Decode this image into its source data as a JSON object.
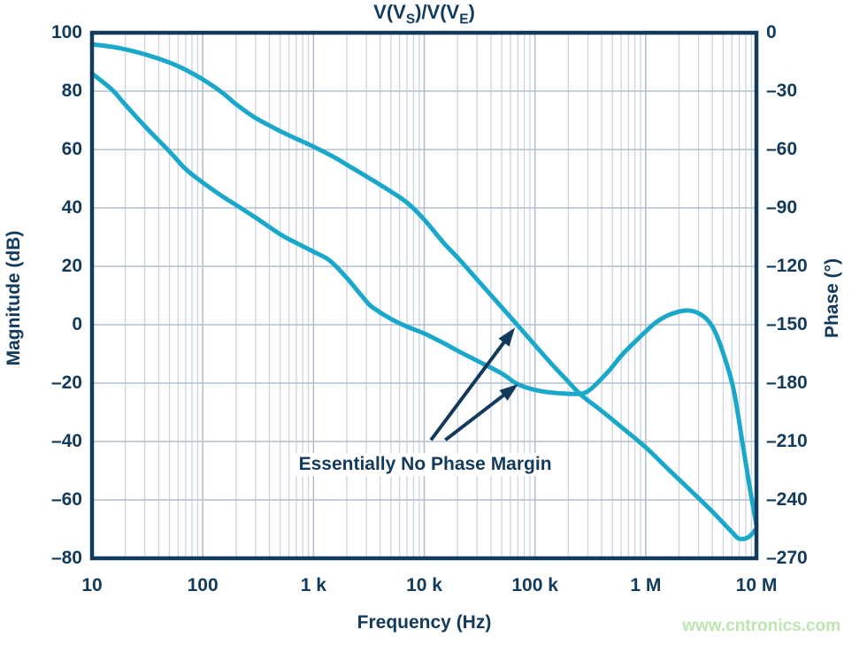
{
  "figure": {
    "title_plain": "V(V_S)/V(V_E)",
    "title_segments": [
      {
        "text": "V(V"
      },
      {
        "text": "S",
        "subscript": true
      },
      {
        "text": ")/V(V"
      },
      {
        "text": "E",
        "subscript": true
      },
      {
        "text": ")"
      }
    ]
  },
  "watermark": {
    "text": "www.cntronics.com",
    "color": "#bce5b0"
  },
  "colors": {
    "curve": "#1aa8ca",
    "frame": "#123a5c",
    "text": "#123a5c",
    "grid_minor": "#ccd4e0",
    "grid_major": "#b4bfd1",
    "background": "#ffffff"
  },
  "chart_data": {
    "type": "line",
    "title": "V(V_S)/V(V_E)",
    "grid": true,
    "legend": "none",
    "x_axis": {
      "label": "Frequency (Hz)",
      "scale": "log",
      "min": 10,
      "max": 10000000,
      "ticks": [
        {
          "label": "10",
          "hz": 10
        },
        {
          "label": "100",
          "hz": 100
        },
        {
          "label": "1 k",
          "hz": 1000
        },
        {
          "label": "10 k",
          "hz": 10000
        },
        {
          "label": "100 k",
          "hz": 100000
        },
        {
          "label": "1 M",
          "hz": 1000000
        },
        {
          "label": "10 M",
          "hz": 10000000
        }
      ]
    },
    "y_axis_left": {
      "label": "Magnitude (dB)",
      "min": -80,
      "max": 100,
      "step": 20,
      "ticks": [
        {
          "label": "100",
          "value": 100
        },
        {
          "label": "80",
          "value": 80
        },
        {
          "label": "60",
          "value": 60
        },
        {
          "label": "40",
          "value": 40
        },
        {
          "label": "20",
          "value": 20
        },
        {
          "label": "0",
          "value": 0
        },
        {
          "label": "–20",
          "value": -20
        },
        {
          "label": "–40",
          "value": -40
        },
        {
          "label": "–60",
          "value": -60
        },
        {
          "label": "–80",
          "value": -80
        }
      ]
    },
    "y_axis_right": {
      "label": "Phase (°)",
      "min": -270,
      "max": 0,
      "step": 30,
      "ticks": [
        {
          "label": "0",
          "value": 0
        },
        {
          "label": "–30",
          "value": -30
        },
        {
          "label": "–60",
          "value": -60
        },
        {
          "label": "–90",
          "value": -90
        },
        {
          "label": "–120",
          "value": -120
        },
        {
          "label": "–150",
          "value": -150
        },
        {
          "label": "–180",
          "value": -180
        },
        {
          "label": "–210",
          "value": -210
        },
        {
          "label": "–240",
          "value": -240
        },
        {
          "label": "–270",
          "value": -270
        }
      ]
    },
    "series": [
      {
        "name": "Magnitude",
        "axis": "left",
        "unit": "dB",
        "points": [
          [
            10,
            96
          ],
          [
            15,
            95.2
          ],
          [
            20,
            94.3
          ],
          [
            30,
            92.6
          ],
          [
            50,
            89.8
          ],
          [
            70,
            87.3
          ],
          [
            100,
            84
          ],
          [
            150,
            79.5
          ],
          [
            200,
            75.5
          ],
          [
            300,
            70.8
          ],
          [
            500,
            66.3
          ],
          [
            700,
            63.7
          ],
          [
            1000,
            61
          ],
          [
            1500,
            57.6
          ],
          [
            2000,
            54.8
          ],
          [
            3000,
            50.8
          ],
          [
            5000,
            45.6
          ],
          [
            7000,
            41.8
          ],
          [
            10000,
            36
          ],
          [
            15000,
            28
          ],
          [
            20000,
            23
          ],
          [
            30000,
            15.5
          ],
          [
            50000,
            6
          ],
          [
            69000,
            0
          ],
          [
            100000,
            -7
          ],
          [
            150000,
            -14.5
          ],
          [
            200000,
            -19.5
          ],
          [
            260000,
            -24
          ],
          [
            400000,
            -29.5
          ],
          [
            600000,
            -35
          ],
          [
            1000000,
            -42
          ],
          [
            1600000,
            -49.5
          ],
          [
            2500000,
            -56.5
          ],
          [
            4000000,
            -64
          ],
          [
            6000000,
            -71
          ],
          [
            7000000,
            -73.3
          ],
          [
            8500000,
            -72.7
          ],
          [
            10000000,
            -69.8
          ]
        ]
      },
      {
        "name": "Phase",
        "axis": "right",
        "unit": "deg",
        "points": [
          [
            10,
            -21
          ],
          [
            15,
            -29
          ],
          [
            20,
            -37
          ],
          [
            30,
            -48
          ],
          [
            50,
            -61
          ],
          [
            70,
            -70
          ],
          [
            100,
            -77
          ],
          [
            150,
            -84
          ],
          [
            200,
            -88.5
          ],
          [
            300,
            -95
          ],
          [
            500,
            -103.5
          ],
          [
            700,
            -108
          ],
          [
            1000,
            -112.5
          ],
          [
            1400,
            -117
          ],
          [
            2000,
            -126
          ],
          [
            3000,
            -138
          ],
          [
            3500,
            -141.5
          ],
          [
            5000,
            -147
          ],
          [
            7000,
            -151
          ],
          [
            10000,
            -154.5
          ],
          [
            15000,
            -159.5
          ],
          [
            21000,
            -164
          ],
          [
            30000,
            -168.5
          ],
          [
            50000,
            -175
          ],
          [
            69000,
            -180.4
          ],
          [
            100000,
            -183.5
          ],
          [
            150000,
            -185
          ],
          [
            250000,
            -185.5
          ],
          [
            320000,
            -183
          ],
          [
            460000,
            -174
          ],
          [
            600000,
            -166
          ],
          [
            730000,
            -161
          ],
          [
            1000000,
            -153.5
          ],
          [
            1260000,
            -148.5
          ],
          [
            1700000,
            -144.5
          ],
          [
            2400000,
            -142.7
          ],
          [
            3200000,
            -145
          ],
          [
            4000000,
            -151
          ],
          [
            4900000,
            -163
          ],
          [
            6200000,
            -183
          ],
          [
            7400000,
            -209
          ],
          [
            8600000,
            -232
          ],
          [
            10000000,
            -253
          ]
        ]
      }
    ],
    "annotation": {
      "text": "Essentially No Phase Margin",
      "anchor": {
        "hz": 10200,
        "mag_db": -48
      },
      "arrows": [
        {
          "from": {
            "hz": 11500,
            "mag_db": -39.5
          },
          "to": {
            "hz": 66000,
            "mag_db": -1
          }
        },
        {
          "from": {
            "hz": 15500,
            "mag_db": -39.5
          },
          "to": {
            "hz": 70500,
            "phase_deg": -180.5
          }
        }
      ]
    }
  }
}
